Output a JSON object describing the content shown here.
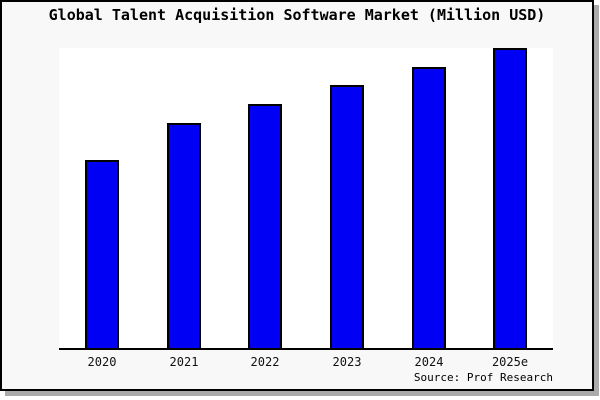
{
  "window": {
    "figure_background": "#f8f8f8",
    "plot_background": "#ffffff",
    "frame_border_color": "#000000",
    "shadow_color": "#aaaaaa"
  },
  "chart_data": {
    "type": "bar",
    "title": "Global Talent Acquisition Software Market (Million USD)",
    "categories": [
      "2020",
      "2021",
      "2022",
      "2023",
      "2024",
      "2025e"
    ],
    "values": [
      62.7,
      75.0,
      81.3,
      87.7,
      93.7,
      100
    ],
    "values_note": "relative scale estimated from bar heights; no y-axis ticks are shown",
    "xlabel": "",
    "ylabel": "",
    "ylim": [
      0,
      100
    ],
    "grid": false,
    "legend": false,
    "y_axis_visible": false,
    "bar_color": "#0000f5",
    "bar_edge_color": "#000000",
    "source_label": "Source: Prof Research"
  }
}
